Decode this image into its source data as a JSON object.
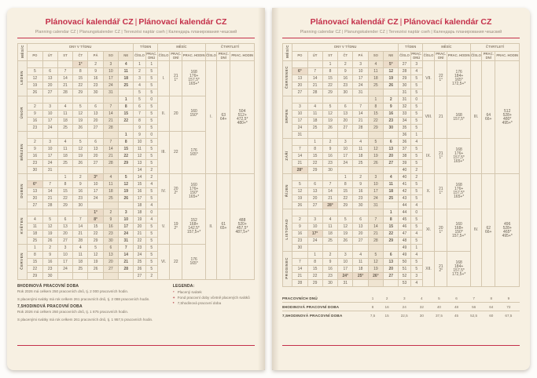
{
  "page_header": {
    "title_cz": "Plánovací kalendář CZ",
    "title_sep": "|",
    "title_sk": "Plánovací kalendár CZ",
    "subtitle": "Planning calendar CZ | Planungskalender CZ | Tervezési naptár cseh | Календарь планирования чешский"
  },
  "table_headers": {
    "mesic_vertical": "MĚSÍC",
    "dny_v_tydnu": "DNY V TÝDNU",
    "tyden": "TÝDEN",
    "mesic": "MĚSÍC",
    "ctvrtleti": "ČTVRTLETÍ",
    "days": [
      "PO",
      "ÚT",
      "ST",
      "ČT",
      "PÁ",
      "SO",
      "NE"
    ],
    "cislo": "ČÍSLO",
    "prac_dnu": "PRAC. DNŮ",
    "prac_dni": "PRAC. DNÍ",
    "prac_hodin": "PRAC. HODIN"
  },
  "pages": [
    {
      "months": [
        {
          "name": "LEDEN",
          "cislo": "I.",
          "dni": [
            "21",
            "1°"
          ],
          "hodin": [
            "168",
            "176+",
            "157,5*",
            "165+*"
          ],
          "rows": [
            [
              "",
              "",
              "",
              "1°",
              "2",
              "3",
              "4",
              "1",
              "1"
            ],
            [
              "5",
              "6",
              "7",
              "8",
              "9",
              "10",
              "11",
              "2",
              "5"
            ],
            [
              "12",
              "13",
              "14",
              "15",
              "16",
              "17",
              "18",
              "3",
              "5"
            ],
            [
              "19",
              "20",
              "21",
              "22",
              "23",
              "24",
              "25",
              "4",
              "5"
            ],
            [
              "26",
              "27",
              "28",
              "29",
              "30",
              "31",
              "",
              "5",
              "5"
            ]
          ]
        },
        {
          "name": "ÚNOR",
          "cislo": "II.",
          "dni": [
            "20"
          ],
          "hodin": [
            "160",
            "150*"
          ],
          "rows": [
            [
              "",
              "",
              "",
              "",
              "",
              "",
              "1",
              "5",
              "0"
            ],
            [
              "2",
              "3",
              "4",
              "5",
              "6",
              "7",
              "8",
              "6",
              "5"
            ],
            [
              "9",
              "10",
              "11",
              "12",
              "13",
              "14",
              "15",
              "7",
              "5"
            ],
            [
              "16",
              "17",
              "18",
              "19",
              "20",
              "21",
              "22",
              "8",
              "5"
            ],
            [
              "23",
              "24",
              "25",
              "26",
              "27",
              "28",
              "",
              "9",
              "5"
            ]
          ]
        },
        {
          "name": "BŘEZEN",
          "cislo": "III.",
          "dni": [
            "22"
          ],
          "hodin": [
            "176",
            "165*"
          ],
          "rows": [
            [
              "",
              "",
              "",
              "",
              "",
              "",
              "1",
              "9",
              "0"
            ],
            [
              "2",
              "3",
              "4",
              "5",
              "6",
              "7",
              "8",
              "10",
              "5"
            ],
            [
              "9",
              "10",
              "11",
              "12",
              "13",
              "14",
              "15",
              "11",
              "5"
            ],
            [
              "16",
              "17",
              "18",
              "19",
              "20",
              "21",
              "22",
              "12",
              "5"
            ],
            [
              "23",
              "24",
              "25",
              "26",
              "27",
              "28",
              "29",
              "13",
              "5"
            ],
            [
              "30",
              "31",
              "",
              "",
              "",
              "",
              "",
              "14",
              "2"
            ]
          ]
        },
        {
          "name": "DUBEN",
          "cislo": "IV.",
          "dni": [
            "20",
            "2°"
          ],
          "hodin": [
            "160",
            "176+",
            "150*",
            "165+*"
          ],
          "rows": [
            [
              "",
              "",
              "1",
              "2",
              "3°",
              "4",
              "5",
              "14",
              "2"
            ],
            [
              "6°",
              "7",
              "8",
              "9",
              "10",
              "11",
              "12",
              "15",
              "4"
            ],
            [
              "13",
              "14",
              "15",
              "16",
              "17",
              "18",
              "19",
              "16",
              "5"
            ],
            [
              "20",
              "21",
              "22",
              "23",
              "24",
              "25",
              "26",
              "17",
              "5"
            ],
            [
              "27",
              "28",
              "29",
              "30",
              "",
              "",
              "",
              "18",
              "4"
            ]
          ]
        },
        {
          "name": "KVĚTEN",
          "cislo": "V.",
          "dni": [
            "19",
            "2°"
          ],
          "hodin": [
            "152",
            "168+",
            "142,5*",
            "157,5+*"
          ],
          "rows": [
            [
              "",
              "",
              "",
              "",
              "1°",
              "2",
              "3",
              "18",
              "0"
            ],
            [
              "4",
              "5",
              "6",
              "7",
              "8°",
              "9",
              "10",
              "19",
              "4"
            ],
            [
              "11",
              "12",
              "13",
              "14",
              "15",
              "16",
              "17",
              "20",
              "5"
            ],
            [
              "18",
              "19",
              "20",
              "21",
              "22",
              "23",
              "24",
              "21",
              "5"
            ],
            [
              "25",
              "26",
              "27",
              "28",
              "29",
              "30",
              "31",
              "22",
              "5"
            ]
          ]
        },
        {
          "name": "ČERVEN",
          "cislo": "VI.",
          "dni": [
            "22"
          ],
          "hodin": [
            "176",
            "165*"
          ],
          "rows": [
            [
              "1",
              "2",
              "3",
              "4",
              "5",
              "6",
              "7",
              "23",
              "5"
            ],
            [
              "8",
              "9",
              "10",
              "11",
              "12",
              "13",
              "14",
              "24",
              "5"
            ],
            [
              "15",
              "16",
              "17",
              "18",
              "19",
              "20",
              "21",
              "25",
              "5"
            ],
            [
              "22",
              "23",
              "24",
              "25",
              "26",
              "27",
              "28",
              "26",
              "5"
            ],
            [
              "29",
              "30",
              "",
              "",
              "",
              "",
              "",
              "27",
              "2"
            ]
          ]
        }
      ],
      "quarters": [
        {
          "cislo": "I.",
          "dni": [
            "63",
            "64+"
          ],
          "hodin": [
            "504",
            "512+",
            "472,5*",
            "480+*"
          ]
        },
        {
          "cislo": "II.",
          "dni": [
            "61",
            "65+"
          ],
          "hodin": [
            "488",
            "520+",
            "457,5*",
            "487,5+*"
          ]
        }
      ]
    },
    {
      "months": [
        {
          "name": "ČERVENEC",
          "cislo": "VII.",
          "dni": [
            "22",
            "1°"
          ],
          "hodin": [
            "176",
            "184+",
            "165*",
            "172,5+*"
          ],
          "rows": [
            [
              "",
              "",
              "1",
              "2",
              "3",
              "4",
              "5°",
              "27",
              "3"
            ],
            [
              "6°",
              "7",
              "8",
              "9",
              "10",
              "11",
              "12",
              "28",
              "4"
            ],
            [
              "13",
              "14",
              "15",
              "16",
              "17",
              "18",
              "19",
              "29",
              "5"
            ],
            [
              "20",
              "21",
              "22",
              "23",
              "24",
              "25",
              "26",
              "30",
              "5"
            ],
            [
              "27",
              "28",
              "29",
              "30",
              "31",
              "",
              "",
              "31",
              "5"
            ]
          ]
        },
        {
          "name": "SRPEN",
          "cislo": "VIII.",
          "dni": [
            "21"
          ],
          "hodin": [
            "168",
            "157,5*"
          ],
          "rows": [
            [
              "",
              "",
              "",
              "",
              "",
              "1",
              "2",
              "31",
              "0"
            ],
            [
              "3",
              "4",
              "5",
              "6",
              "7",
              "8",
              "9",
              "32",
              "5"
            ],
            [
              "10",
              "11",
              "12",
              "13",
              "14",
              "15",
              "16",
              "33",
              "5"
            ],
            [
              "17",
              "18",
              "19",
              "20",
              "21",
              "22",
              "23",
              "34",
              "5"
            ],
            [
              "24",
              "25",
              "26",
              "27",
              "28",
              "29",
              "30",
              "35",
              "5"
            ],
            [
              "31",
              "",
              "",
              "",
              "",
              "",
              "",
              "36",
              "1"
            ]
          ]
        },
        {
          "name": "ZÁŘÍ",
          "cislo": "IX.",
          "dni": [
            "21",
            "1°"
          ],
          "hodin": [
            "168",
            "176+",
            "157,5*",
            "165+*"
          ],
          "rows": [
            [
              "",
              "1",
              "2",
              "3",
              "4",
              "5",
              "6",
              "36",
              "4"
            ],
            [
              "7",
              "8",
              "9",
              "10",
              "11",
              "12",
              "13",
              "37",
              "5"
            ],
            [
              "14",
              "15",
              "16",
              "17",
              "18",
              "19",
              "20",
              "38",
              "5"
            ],
            [
              "21",
              "22",
              "23",
              "24",
              "25",
              "26",
              "27",
              "39",
              "5"
            ],
            [
              "28°",
              "29",
              "30",
              "",
              "",
              "",
              "",
              "40",
              "2"
            ]
          ]
        },
        {
          "name": "ŘÍJEN",
          "cislo": "X.",
          "dni": [
            "21",
            "1°"
          ],
          "hodin": [
            "168",
            "176+",
            "157,5*",
            "165+*"
          ],
          "rows": [
            [
              "",
              "",
              "",
              "1",
              "2",
              "3",
              "4",
              "40",
              "2"
            ],
            [
              "5",
              "6",
              "7",
              "8",
              "9",
              "10",
              "11",
              "41",
              "5"
            ],
            [
              "12",
              "13",
              "14",
              "15",
              "16",
              "17",
              "18",
              "42",
              "5"
            ],
            [
              "19",
              "20",
              "21",
              "22",
              "23",
              "24",
              "25",
              "43",
              "5"
            ],
            [
              "26",
              "27",
              "28°",
              "29",
              "30",
              "31",
              "",
              "44",
              "4"
            ]
          ]
        },
        {
          "name": "LISTOPAD",
          "cislo": "XI.",
          "dni": [
            "20",
            "1°"
          ],
          "hodin": [
            "160",
            "168+",
            "150*",
            "157,5+*"
          ],
          "rows": [
            [
              "",
              "",
              "",
              "",
              "",
              "",
              "1",
              "44",
              "0"
            ],
            [
              "2",
              "3",
              "4",
              "5",
              "6",
              "7",
              "8",
              "45",
              "5"
            ],
            [
              "9",
              "10",
              "11",
              "12",
              "13",
              "14",
              "15",
              "46",
              "5"
            ],
            [
              "16",
              "17°",
              "18",
              "19",
              "20",
              "21",
              "22",
              "47",
              "4"
            ],
            [
              "23",
              "24",
              "25",
              "26",
              "27",
              "28",
              "29",
              "48",
              "5"
            ],
            [
              "30",
              "",
              "",
              "",
              "",
              "",
              "",
              "49",
              "1"
            ]
          ]
        },
        {
          "name": "PROSINEC",
          "cislo": "XII.",
          "dni": [
            "21",
            "2°"
          ],
          "hodin": [
            "168",
            "184+",
            "157,5*",
            "172,5+*"
          ],
          "rows": [
            [
              "",
              "1",
              "2",
              "3",
              "4",
              "5",
              "6",
              "49",
              "4"
            ],
            [
              "7",
              "8",
              "9",
              "10",
              "11",
              "12",
              "13",
              "50",
              "5"
            ],
            [
              "14",
              "15",
              "16",
              "17",
              "18",
              "19",
              "20",
              "51",
              "5"
            ],
            [
              "21",
              "22",
              "23",
              "24°",
              "25°",
              "26°",
              "27",
              "52",
              "3"
            ],
            [
              "28",
              "29",
              "30",
              "31",
              "",
              "",
              "",
              "53",
              "4"
            ]
          ]
        }
      ],
      "quarters": [
        {
          "cislo": "III.",
          "dni": [
            "64",
            "66+"
          ],
          "hodin": [
            "512",
            "528+",
            "480*",
            "495+*"
          ]
        },
        {
          "cislo": "IV.",
          "dni": [
            "62",
            "66+"
          ],
          "hodin": [
            "496",
            "528+",
            "465*",
            "495+*"
          ]
        }
      ]
    }
  ],
  "footers": {
    "left": {
      "h1": "8HODINOVÁ PRACOVNÍ DOBA",
      "l1": "Rok 2026 má celkem 250 pracovních dnů, tj. 2 000 pracovních hodin.",
      "l2": "S placenými svátky má rok celkem 261 pracovních dnů, tj. 2 088 pracovních hodin.",
      "h2": "7,5HODINOVÁ PRACOVNÍ DOBA",
      "l3": "Rok 2026 má celkem 250 pracovních dnů, tj. 1 875 pracovních hodin.",
      "l4": "S placenými svátky má rok celkem 261 pracovních dnů, tj. 1 957,5 pracovních hodin.",
      "legend_title": "LEGENDA:",
      "legend": [
        {
          "sym": "°",
          "text": "Placený svátek"
        },
        {
          "sym": "+",
          "text": "Fond pracovní doby včetně placených svátků"
        },
        {
          "sym": "*",
          "text": "7,5hodinová pracovní doba"
        }
      ]
    },
    "right": {
      "rows": [
        {
          "label": "PRACOVNÍCH DNŮ",
          "values": [
            "1",
            "2",
            "3",
            "4",
            "5",
            "6",
            "7",
            "8",
            "9"
          ]
        },
        {
          "label": "8HODINOVÁ PRACOVNÍ DOBA",
          "values": [
            "8",
            "16",
            "24",
            "32",
            "40",
            "48",
            "56",
            "64",
            "72"
          ]
        },
        {
          "label": "7,5HODINOVÁ PRACOVNÍ DOBA",
          "values": [
            "7,5",
            "15",
            "22,5",
            "30",
            "37,5",
            "45",
            "52,5",
            "60",
            "67,5"
          ]
        }
      ]
    }
  },
  "colors": {
    "accent_red": "#c4304a",
    "number_red": "#b5343e",
    "page_bg": "#f7f0e2",
    "grid_line": "#d4c7af",
    "saturday_shade": "#efe4d1",
    "holiday_shade": "#ecdcc9"
  }
}
